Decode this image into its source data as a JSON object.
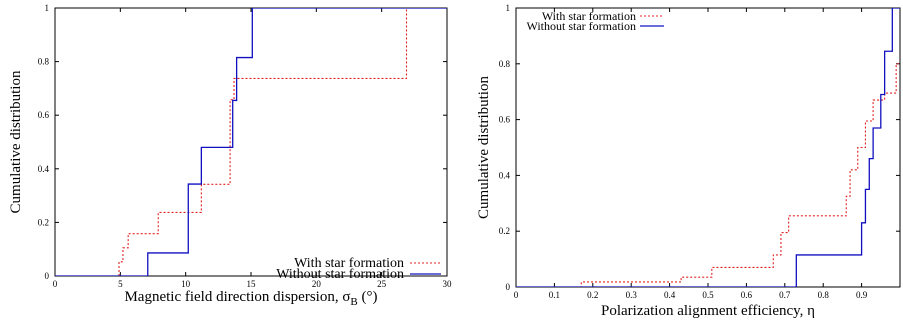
{
  "chart_data": [
    {
      "type": "line",
      "step": true,
      "xlabel": "Magnetic field direction dispersion, σ",
      "xlabel_sub": "B",
      "xlabel_unit": " (°)",
      "ylabel": "Cumulative distribution",
      "xlim": [
        0,
        30
      ],
      "ylim": [
        0,
        1
      ],
      "xticks": [
        0,
        5,
        10,
        15,
        20,
        25,
        30
      ],
      "yticks": [
        0,
        0.2,
        0.4,
        0.6,
        0.8,
        1
      ],
      "legend_position": "bottom-right",
      "series": [
        {
          "name": "With star formation",
          "color": "#e02020",
          "dash": "dotted",
          "x": [
            0,
            4.9,
            5.2,
            5.6,
            7.9,
            11.2,
            13.4,
            13.7,
            26.9
          ],
          "y": [
            0,
            0.053,
            0.105,
            0.158,
            0.237,
            0.342,
            0.658,
            0.737,
            1.0
          ]
        },
        {
          "name": "Without star formation",
          "color": "#1010c0",
          "dash": "solid",
          "x": [
            0,
            7.1,
            10.2,
            10.7,
            11.2,
            13.6,
            13.9,
            15.1
          ],
          "y": [
            0,
            0.086,
            0.343,
            0.343,
            0.48,
            0.655,
            0.815,
            1.0
          ]
        }
      ]
    },
    {
      "type": "line",
      "step": true,
      "xlabel": "Polarization alignment efficiency, η",
      "ylabel": "Cumulative distribution",
      "xlim": [
        0,
        1
      ],
      "ylim": [
        0,
        1
      ],
      "xticks": [
        0,
        0.1,
        0.2,
        0.3,
        0.4,
        0.5,
        0.6,
        0.7,
        0.8,
        0.9
      ],
      "yticks": [
        0,
        0.2,
        0.4,
        0.6,
        0.8,
        1
      ],
      "legend_position": "top-left",
      "series": [
        {
          "name": "With star formation",
          "color": "#e02020",
          "dash": "dotted",
          "x": [
            0,
            0.17,
            0.43,
            0.51,
            0.67,
            0.69,
            0.71,
            0.86,
            0.87,
            0.89,
            0.91,
            0.93,
            0.96,
            0.99
          ],
          "y": [
            0,
            0.018,
            0.035,
            0.07,
            0.115,
            0.195,
            0.255,
            0.325,
            0.42,
            0.5,
            0.595,
            0.67,
            0.695,
            0.8
          ]
        },
        {
          "name": "Without star formation",
          "color": "#1010c0",
          "dash": "solid",
          "x": [
            0,
            0.73,
            0.9,
            0.91,
            0.92,
            0.93,
            0.95,
            0.96,
            0.98
          ],
          "y": [
            0,
            0.115,
            0.23,
            0.35,
            0.46,
            0.57,
            0.69,
            0.845,
            1.0
          ]
        }
      ]
    }
  ]
}
